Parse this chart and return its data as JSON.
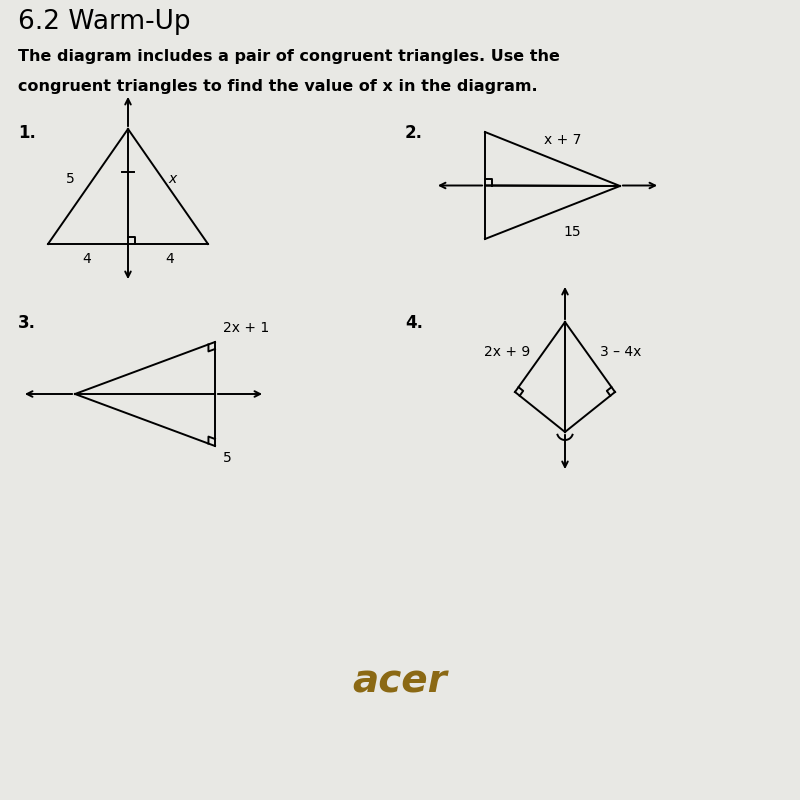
{
  "title": "6.2 Warm-Up",
  "subtitle_line1": "The diagram includes a pair of congruent triangles. Use the",
  "subtitle_line2": "congruent triangles to find the value of x in the diagram.",
  "bg_color": "#e8e8e4",
  "bottom_bar_color": "#3a3530",
  "text_color": "#000000",
  "acer_color": "#8B6914",
  "label1": {
    "side_left": "5",
    "side_right": "x",
    "base_left": "4",
    "base_right": "4"
  },
  "label2": {
    "top": "x + 7",
    "bot": "15"
  },
  "label3": {
    "top": "2x + 1",
    "bot": "5"
  },
  "label4": {
    "left": "2x + 9",
    "right": "3 – 4x"
  },
  "lw": 1.4
}
